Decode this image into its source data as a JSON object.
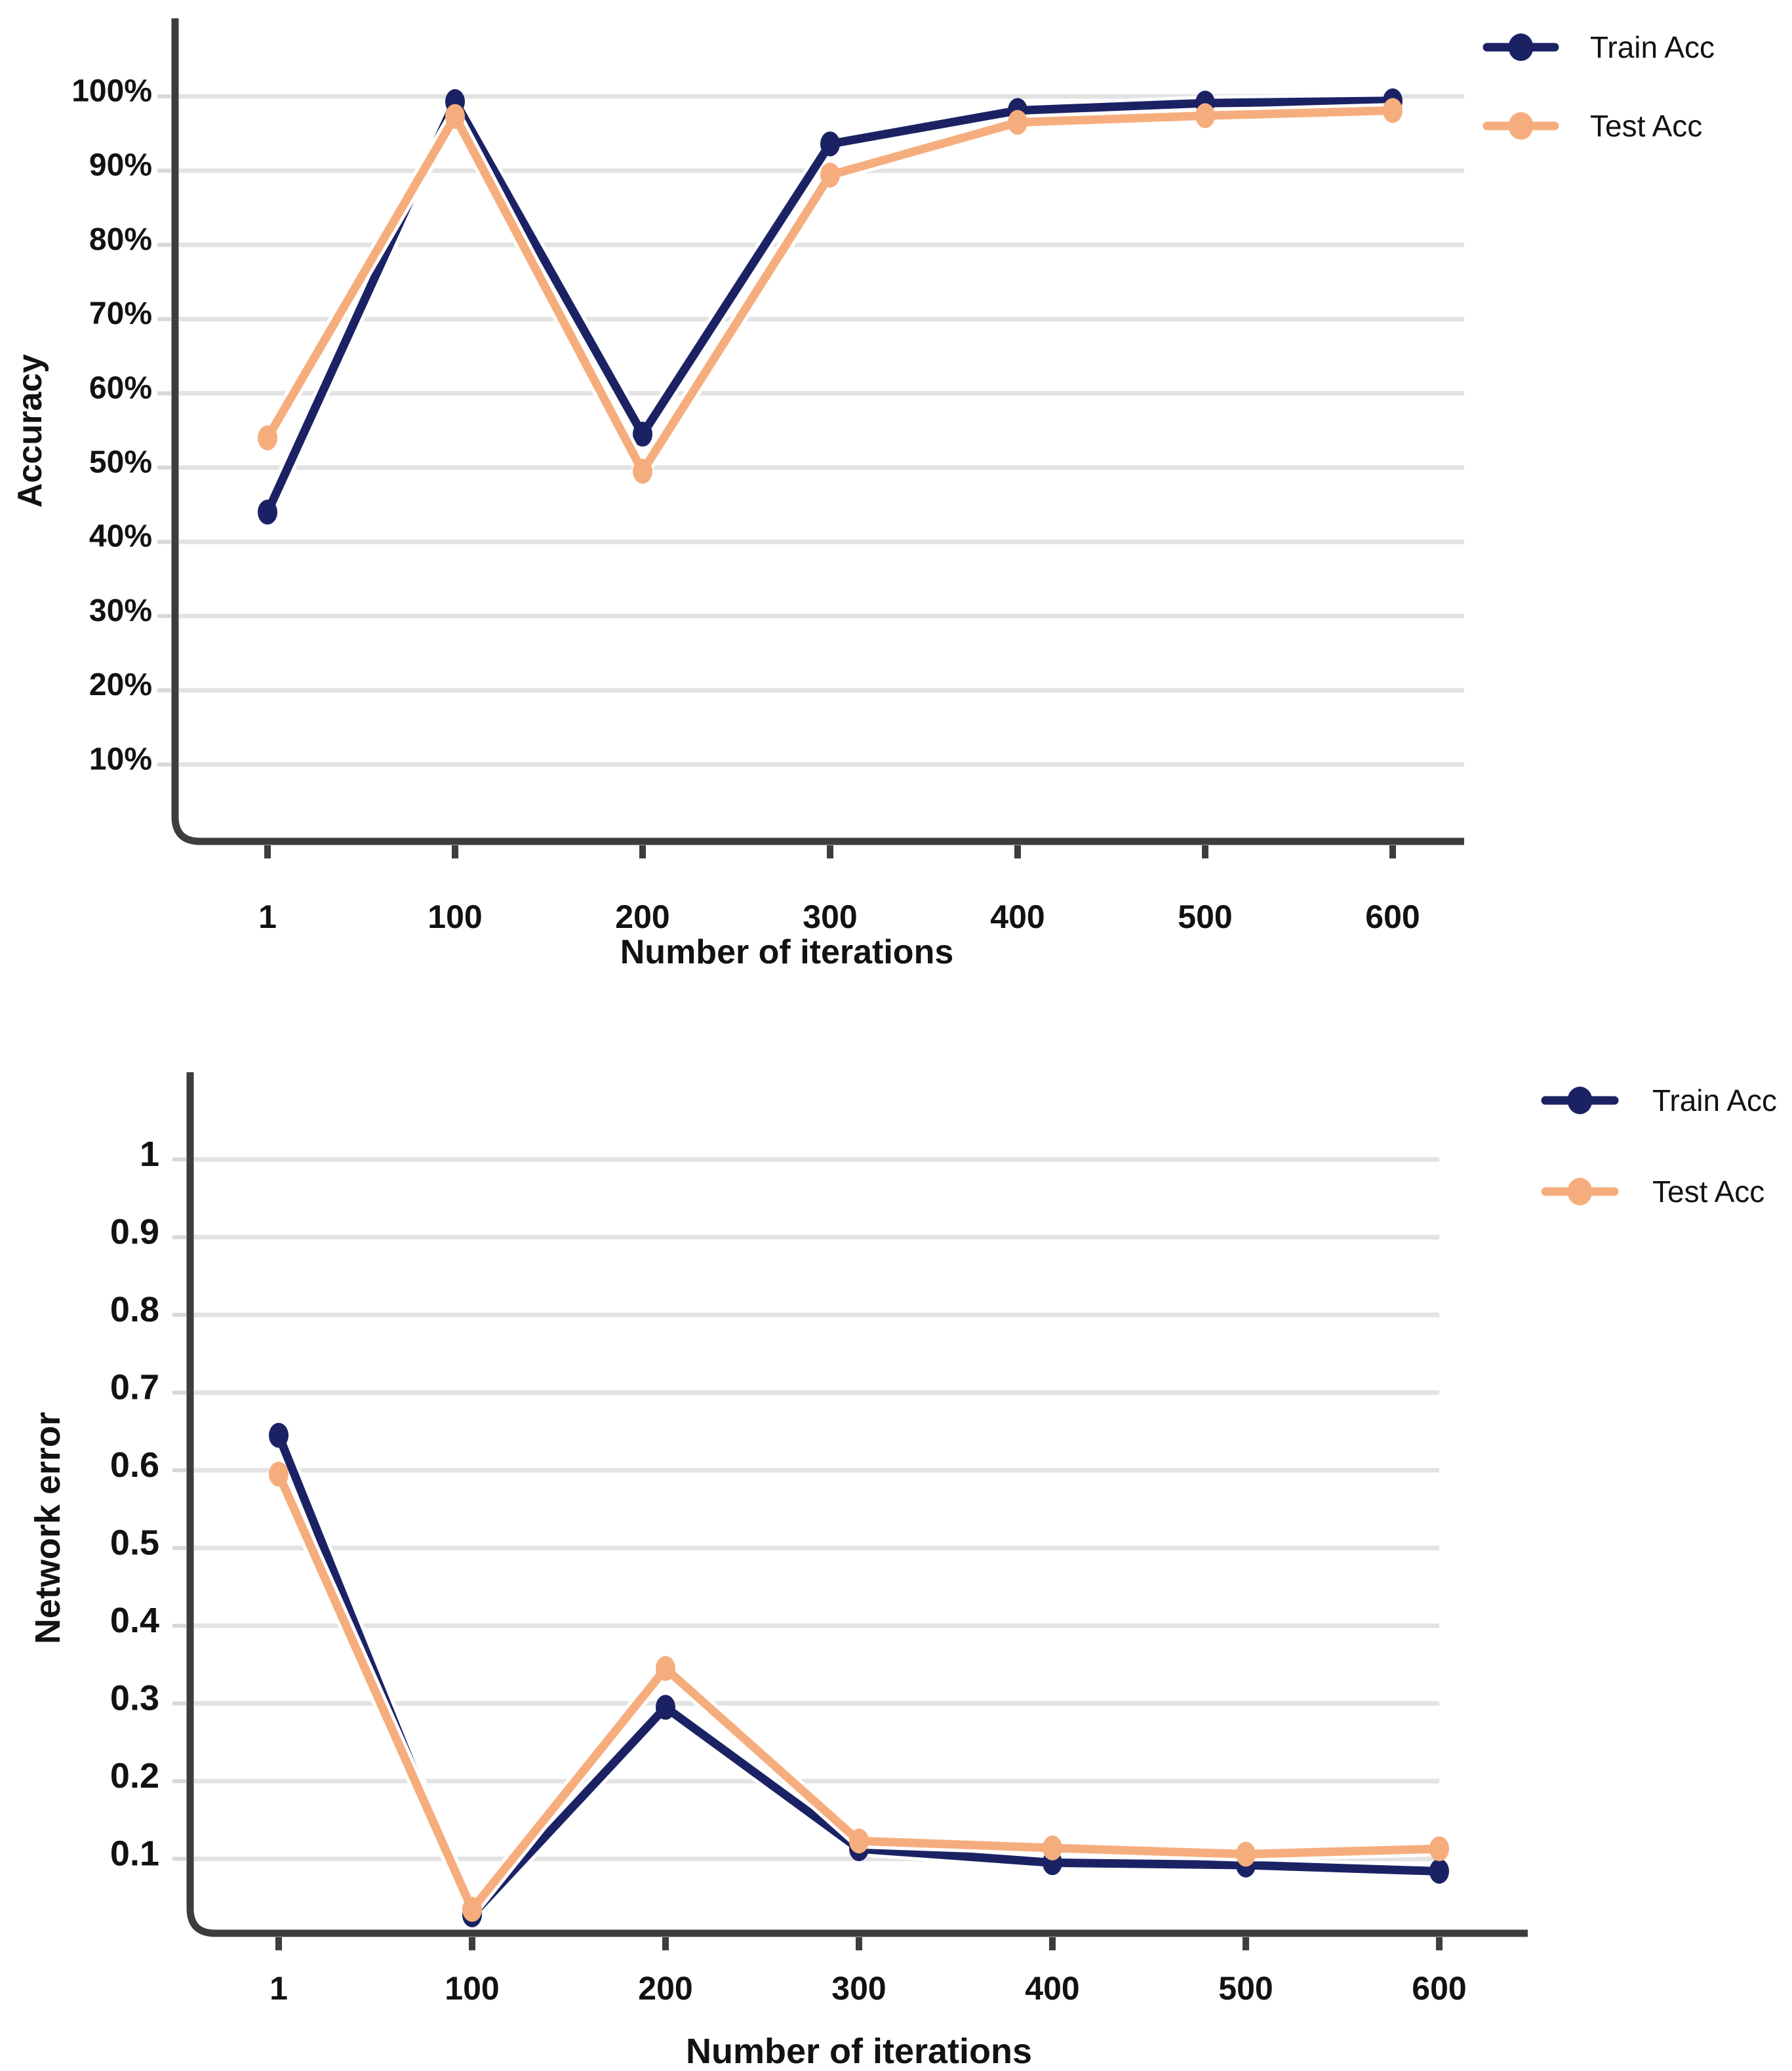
{
  "colors": {
    "navy": "#1b2264",
    "peach": "#f6ad7d",
    "grid": "#e3e3e3",
    "axis": "#3d3d3d",
    "tick_dash": "#d8d8d8",
    "text": "#121212",
    "background": "#ffffff"
  },
  "chart_data": [
    {
      "id": "accuracy",
      "type": "line",
      "title": "",
      "xlabel": "Number of iterations",
      "ylabel": "Accuracy",
      "categories": [
        "1",
        "100",
        "200",
        "300",
        "400",
        "500",
        "600"
      ],
      "y_ticks": [
        {
          "label": "100%",
          "value": 100
        },
        {
          "label": "90%",
          "value": 90
        },
        {
          "label": "80%",
          "value": 80
        },
        {
          "label": "70%",
          "value": 70
        },
        {
          "label": "60%",
          "value": 60
        },
        {
          "label": "50%",
          "value": 50
        },
        {
          "label": "40%",
          "value": 40
        },
        {
          "label": "30%",
          "value": 30
        },
        {
          "label": "20%",
          "value": 20
        },
        {
          "label": "10%",
          "value": 10
        }
      ],
      "ylim": [
        0,
        108
      ],
      "grid": true,
      "legend_position": "top-right",
      "marker": "oval-dot",
      "series": [
        {
          "name": "Train Acc",
          "color": "#1b2264",
          "values": [
            44,
            99.3,
            54.5,
            93.6,
            98.1,
            99.1,
            99.4
          ]
        },
        {
          "name": "Test Acc",
          "color": "#f6ad7d",
          "values": [
            54,
            97.3,
            49.5,
            89.4,
            96.5,
            97.4,
            98.1
          ]
        }
      ],
      "legend": [
        "Train Acc",
        "Test Acc"
      ]
    },
    {
      "id": "error",
      "type": "line",
      "title": "",
      "xlabel": "Number of iterations",
      "ylabel": "Network error",
      "categories": [
        "1",
        "100",
        "200",
        "300",
        "400",
        "500",
        "600"
      ],
      "y_ticks": [
        {
          "label": "1",
          "value": 1.0
        },
        {
          "label": "0.9",
          "value": 0.9
        },
        {
          "label": "0.8",
          "value": 0.8
        },
        {
          "label": "0.7",
          "value": 0.7
        },
        {
          "label": "0.6",
          "value": 0.6
        },
        {
          "label": "0.5",
          "value": 0.5
        },
        {
          "label": "0.4",
          "value": 0.4
        },
        {
          "label": "0.3",
          "value": 0.3
        },
        {
          "label": "0.2",
          "value": 0.2
        },
        {
          "label": "0.1",
          "value": 0.1
        }
      ],
      "ylim": [
        0,
        1.12
      ],
      "grid": true,
      "legend_position": "top-right",
      "marker": "oval-dot",
      "series": [
        {
          "name": "Train Acc",
          "color": "#1b2264",
          "values": [
            0.645,
            0.028,
            0.295,
            0.113,
            0.095,
            0.092,
            0.084
          ]
        },
        {
          "name": "Test Acc",
          "color": "#f6ad7d",
          "values": [
            0.595,
            0.035,
            0.345,
            0.123,
            0.114,
            0.106,
            0.113
          ]
        }
      ],
      "legend": [
        "Train Acc",
        "Test Acc"
      ]
    }
  ]
}
